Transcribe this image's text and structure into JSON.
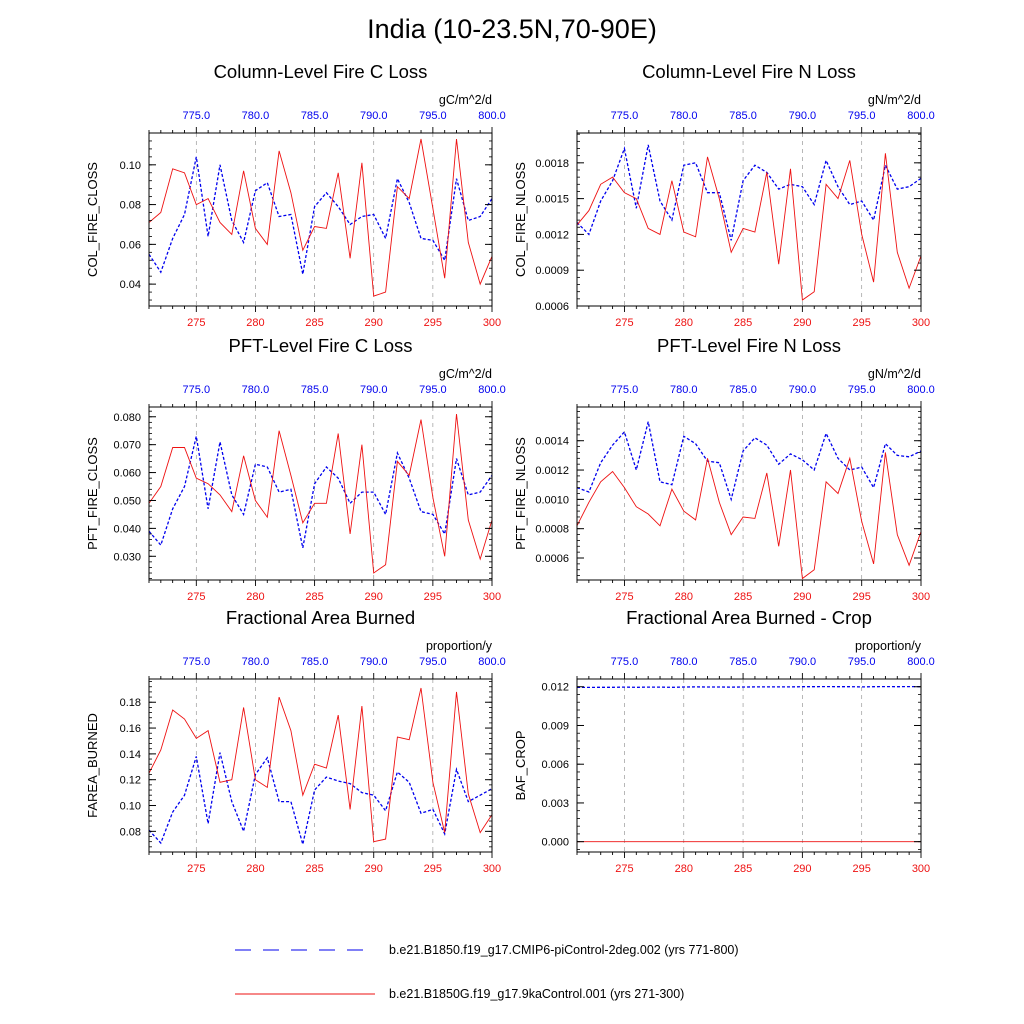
{
  "title": "India (10-23.5N,70-90E)",
  "colors": {
    "ctrl": "#0000ee",
    "exp": "#ee1111",
    "axis": "#000000",
    "grid": "#999999"
  },
  "legend": [
    {
      "label": "b.e21.B1850.f19_g17.CMIP6-piControl-2deg.002 (yrs 771-800)",
      "style": "dashed",
      "color": "#0000ee"
    },
    {
      "label": "b.e21.B1850G.f19_g17.9kaControl.001 (yrs 271-300)",
      "style": "solid",
      "color": "#ee1111"
    }
  ],
  "chart_data": [
    {
      "type": "line",
      "title": "Column-Level Fire C Loss",
      "ylabel": "COL_FIRE_CLOSS",
      "units": "gC/m^2/d",
      "ylim": [
        0.029,
        0.116
      ],
      "yticks": [
        0.04,
        0.06,
        0.08,
        0.1
      ],
      "ytick_labels": [
        "0.04",
        "0.06",
        "0.08",
        "0.10"
      ],
      "bottom_axis": {
        "range": [
          271,
          300
        ],
        "ticks": [
          275,
          280,
          285,
          290,
          295,
          300
        ]
      },
      "top_axis": {
        "range": [
          771,
          800
        ],
        "ticks": [
          "775.0",
          "780.0",
          "785.0",
          "790.0",
          "795.0",
          "800.0"
        ]
      },
      "series": [
        {
          "name": "b.e21.B1850.f19_g17.CMIP6-piControl-2deg.002 (yrs 771-800)",
          "style": "dashed",
          "values": [
            0.055,
            0.046,
            0.063,
            0.075,
            0.104,
            0.064,
            0.1,
            0.072,
            0.061,
            0.087,
            0.091,
            0.074,
            0.075,
            0.045,
            0.079,
            0.086,
            0.079,
            0.07,
            0.074,
            0.075,
            0.063,
            0.093,
            0.081,
            0.063,
            0.062,
            0.052,
            0.093,
            0.072,
            0.074,
            0.083
          ]
        },
        {
          "name": "b.e21.B1850G.f19_g17.9kaControl.001 (yrs 271-300)",
          "style": "solid",
          "values": [
            0.071,
            0.076,
            0.098,
            0.096,
            0.08,
            0.083,
            0.071,
            0.065,
            0.097,
            0.068,
            0.06,
            0.107,
            0.086,
            0.057,
            0.069,
            0.068,
            0.096,
            0.053,
            0.101,
            0.034,
            0.036,
            0.089,
            0.083,
            0.113,
            0.078,
            0.043,
            0.113,
            0.061,
            0.04,
            0.054
          ]
        }
      ]
    },
    {
      "type": "line",
      "title": "Column-Level Fire N Loss",
      "ylabel": "COL_FIRE_NLOSS",
      "units": "gN/m^2/d",
      "ylim": [
        0.0006,
        0.00205
      ],
      "yticks": [
        0.0006,
        0.0009,
        0.0012,
        0.0015,
        0.0018
      ],
      "ytick_labels": [
        "0.0006",
        "0.0009",
        "0.0012",
        "0.0015",
        "0.0018"
      ],
      "bottom_axis": {
        "range": [
          271,
          300
        ],
        "ticks": [
          275,
          280,
          285,
          290,
          295,
          300
        ]
      },
      "top_axis": {
        "range": [
          771,
          800
        ],
        "ticks": [
          "775.0",
          "780.0",
          "785.0",
          "790.0",
          "795.0",
          "800.0"
        ]
      },
      "series": [
        {
          "name": "b.e21.B1850.f19_g17.CMIP6-piControl-2deg.002 (yrs 771-800)",
          "style": "dashed",
          "values": [
            0.0013,
            0.0012,
            0.00148,
            0.00165,
            0.00192,
            0.00142,
            0.00195,
            0.00148,
            0.00132,
            0.00178,
            0.0018,
            0.00155,
            0.00155,
            0.00115,
            0.00165,
            0.00178,
            0.00172,
            0.00158,
            0.00162,
            0.0016,
            0.00145,
            0.00182,
            0.0016,
            0.00145,
            0.00148,
            0.00132,
            0.00178,
            0.00158,
            0.0016,
            0.00167
          ]
        },
        {
          "name": "b.e21.B1850G.f19_g17.9kaControl.001 (yrs 271-300)",
          "style": "solid",
          "values": [
            0.00128,
            0.0014,
            0.00162,
            0.00168,
            0.00155,
            0.0015,
            0.00125,
            0.0012,
            0.00165,
            0.00122,
            0.00118,
            0.00185,
            0.0015,
            0.00105,
            0.00125,
            0.00122,
            0.00172,
            0.00095,
            0.00175,
            0.00065,
            0.00072,
            0.00162,
            0.0015,
            0.00182,
            0.0012,
            0.0008,
            0.00188,
            0.00105,
            0.00075,
            0.00102
          ]
        }
      ]
    },
    {
      "type": "line",
      "title": "PFT-Level Fire C Loss",
      "ylabel": "PFT_FIRE_CLOSS",
      "units": "gC/m^2/d",
      "ylim": [
        0.0215,
        0.0835
      ],
      "yticks": [
        0.03,
        0.04,
        0.05,
        0.06,
        0.07,
        0.08
      ],
      "ytick_labels": [
        "0.030",
        "0.040",
        "0.050",
        "0.060",
        "0.070",
        "0.080"
      ],
      "bottom_axis": {
        "range": [
          271,
          300
        ],
        "ticks": [
          275,
          280,
          285,
          290,
          295,
          300
        ]
      },
      "top_axis": {
        "range": [
          771,
          800
        ],
        "ticks": [
          "775.0",
          "780.0",
          "785.0",
          "790.0",
          "795.0",
          "800.0"
        ]
      },
      "series": [
        {
          "name": "b.e21.B1850.f19_g17.CMIP6-piControl-2deg.002 (yrs 771-800)",
          "style": "dashed",
          "values": [
            0.039,
            0.034,
            0.047,
            0.055,
            0.073,
            0.047,
            0.071,
            0.052,
            0.045,
            0.063,
            0.062,
            0.053,
            0.054,
            0.033,
            0.056,
            0.062,
            0.058,
            0.049,
            0.053,
            0.053,
            0.045,
            0.067,
            0.058,
            0.046,
            0.045,
            0.038,
            0.065,
            0.052,
            0.053,
            0.059
          ]
        },
        {
          "name": "b.e21.B1850G.f19_g17.9kaControl.001 (yrs 271-300)",
          "style": "solid",
          "values": [
            0.049,
            0.055,
            0.069,
            0.069,
            0.058,
            0.056,
            0.052,
            0.046,
            0.066,
            0.05,
            0.044,
            0.075,
            0.059,
            0.042,
            0.049,
            0.049,
            0.074,
            0.038,
            0.07,
            0.024,
            0.027,
            0.064,
            0.059,
            0.079,
            0.051,
            0.03,
            0.081,
            0.043,
            0.029,
            0.043
          ]
        }
      ]
    },
    {
      "type": "line",
      "title": "PFT-Level Fire N Loss",
      "ylabel": "PFT_FIRE_NLOSS",
      "units": "gN/m^2/d",
      "ylim": [
        0.00045,
        0.00163
      ],
      "yticks": [
        0.0006,
        0.0008,
        0.001,
        0.0012,
        0.0014
      ],
      "ytick_labels": [
        "0.0006",
        "0.0008",
        "0.0010",
        "0.0012",
        "0.0014"
      ],
      "bottom_axis": {
        "range": [
          271,
          300
        ],
        "ticks": [
          275,
          280,
          285,
          290,
          295,
          300
        ]
      },
      "top_axis": {
        "range": [
          771,
          800
        ],
        "ticks": [
          "775.0",
          "780.0",
          "785.0",
          "790.0",
          "795.0",
          "800.0"
        ]
      },
      "series": [
        {
          "name": "b.e21.B1850.f19_g17.CMIP6-piControl-2deg.002 (yrs 771-800)",
          "style": "dashed",
          "values": [
            0.00108,
            0.00105,
            0.00125,
            0.00137,
            0.00146,
            0.0012,
            0.00153,
            0.00112,
            0.0011,
            0.00143,
            0.00138,
            0.00126,
            0.00125,
            0.001,
            0.00133,
            0.00142,
            0.00137,
            0.00124,
            0.00131,
            0.00127,
            0.0012,
            0.00145,
            0.00128,
            0.0012,
            0.00122,
            0.00108,
            0.00138,
            0.0013,
            0.00129,
            0.00133
          ]
        },
        {
          "name": "b.e21.B1850G.f19_g17.9kaControl.001 (yrs 271-300)",
          "style": "solid",
          "values": [
            0.00082,
            0.00098,
            0.00112,
            0.00119,
            0.00108,
            0.00095,
            0.0009,
            0.00082,
            0.00107,
            0.00092,
            0.00086,
            0.00128,
            0.00098,
            0.00076,
            0.00088,
            0.00087,
            0.00118,
            0.00068,
            0.0012,
            0.00046,
            0.00052,
            0.00112,
            0.00104,
            0.00128,
            0.00085,
            0.00056,
            0.00132,
            0.00076,
            0.00055,
            0.00078
          ]
        }
      ]
    },
    {
      "type": "line",
      "title": "Fractional Area Burned",
      "ylabel": "FAREA_BURNED",
      "units": "proportion/y",
      "ylim": [
        0.064,
        0.198
      ],
      "yticks": [
        0.08,
        0.1,
        0.12,
        0.14,
        0.16,
        0.18
      ],
      "ytick_labels": [
        "0.08",
        "0.10",
        "0.12",
        "0.14",
        "0.16",
        "0.18"
      ],
      "bottom_axis": {
        "range": [
          271,
          300
        ],
        "ticks": [
          275,
          280,
          285,
          290,
          295,
          300
        ]
      },
      "top_axis": {
        "range": [
          771,
          800
        ],
        "ticks": [
          "775.0",
          "780.0",
          "785.0",
          "790.0",
          "795.0",
          "800.0"
        ]
      },
      "series": [
        {
          "name": "b.e21.B1850.f19_g17.CMIP6-piControl-2deg.002 (yrs 771-800)",
          "style": "dashed",
          "values": [
            0.081,
            0.071,
            0.095,
            0.108,
            0.138,
            0.086,
            0.141,
            0.103,
            0.08,
            0.124,
            0.137,
            0.103,
            0.103,
            0.07,
            0.112,
            0.122,
            0.119,
            0.117,
            0.11,
            0.108,
            0.096,
            0.126,
            0.118,
            0.094,
            0.097,
            0.078,
            0.128,
            0.103,
            0.108,
            0.113
          ]
        },
        {
          "name": "b.e21.B1850G.f19_g17.9kaControl.001 (yrs 271-300)",
          "style": "solid",
          "values": [
            0.125,
            0.143,
            0.174,
            0.167,
            0.152,
            0.158,
            0.118,
            0.12,
            0.176,
            0.12,
            0.114,
            0.184,
            0.158,
            0.108,
            0.132,
            0.129,
            0.17,
            0.097,
            0.177,
            0.072,
            0.074,
            0.153,
            0.151,
            0.191,
            0.118,
            0.079,
            0.188,
            0.109,
            0.079,
            0.093
          ]
        }
      ]
    },
    {
      "type": "line",
      "title": "Fractional Area Burned - Crop",
      "ylabel": "BAF_CROP",
      "units": "proportion/y",
      "ylim": [
        -0.0008,
        0.0126
      ],
      "yticks": [
        0.0,
        0.003,
        0.006,
        0.009,
        0.012
      ],
      "ytick_labels": [
        "0.000",
        "0.003",
        "0.006",
        "0.009",
        "0.012"
      ],
      "bottom_axis": {
        "range": [
          271,
          300
        ],
        "ticks": [
          275,
          280,
          285,
          290,
          295,
          300
        ]
      },
      "top_axis": {
        "range": [
          771,
          800
        ],
        "ticks": [
          "775.0",
          "780.0",
          "785.0",
          "790.0",
          "795.0",
          "800.0"
        ]
      },
      "series": [
        {
          "name": "b.e21.B1850.f19_g17.CMIP6-piControl-2deg.002 (yrs 771-800)",
          "style": "dashed",
          "values": [
            0.01195,
            0.01195,
            0.01196,
            0.01196,
            0.01197,
            0.01196,
            0.01197,
            0.01197,
            0.01196,
            0.01198,
            0.01199,
            0.01198,
            0.01198,
            0.01197,
            0.01198,
            0.01199,
            0.01199,
            0.01199,
            0.01199,
            0.012,
            0.012,
            0.01201,
            0.012,
            0.012,
            0.01199,
            0.012,
            0.01201,
            0.012,
            0.01201,
            0.01201
          ]
        },
        {
          "name": "b.e21.B1850G.f19_g17.9kaControl.001 (yrs 271-300)",
          "style": "solid",
          "values": [
            0,
            0,
            0,
            0,
            0,
            0,
            0,
            0,
            0,
            0,
            0,
            0,
            0,
            0,
            0,
            0,
            0,
            0,
            0,
            0,
            0,
            0,
            0,
            0,
            0,
            0,
            0,
            0,
            0,
            0
          ]
        }
      ]
    }
  ]
}
